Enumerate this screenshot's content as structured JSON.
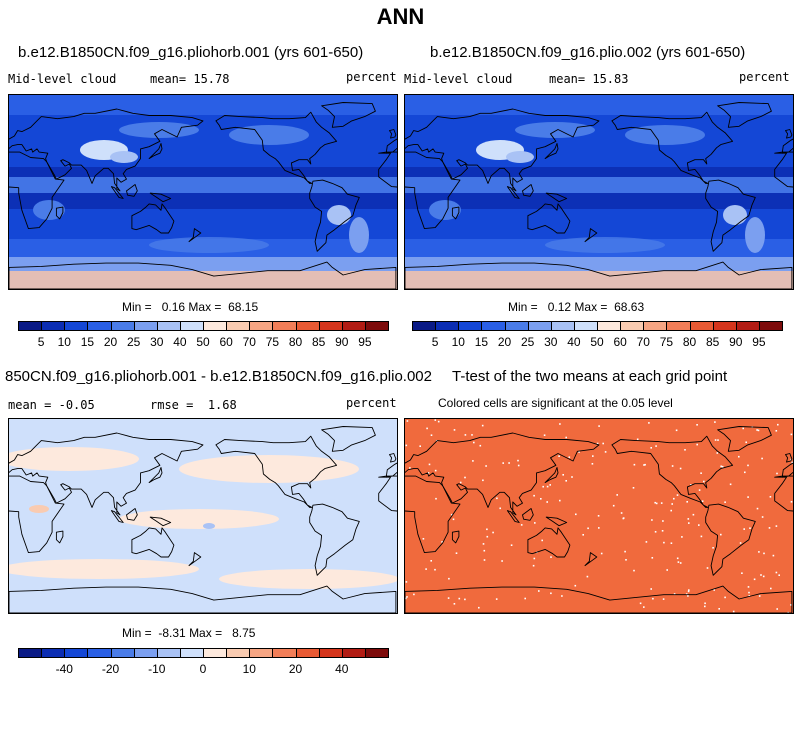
{
  "figure_title": "ANN",
  "colors": {
    "land_line": "#000000",
    "rainbow_scale": [
      "#0a1a86",
      "#0b2db3",
      "#1447d6",
      "#2a5fe5",
      "#4a7ce8",
      "#7b9ff0",
      "#a9c2f5",
      "#cfe0fb",
      "#fde9dd",
      "#f9cbb1",
      "#f6a583",
      "#f27e58",
      "#e85a34",
      "#d5351c",
      "#b21c14",
      "#7d0b0b"
    ]
  },
  "panels": [
    {
      "id": "panel-1",
      "case_title": "b.e12.B1850CN.f09_g16.pliohorb.001 (yrs 601-650)",
      "field_label": "Mid-level cloud",
      "mean_label": "mean=",
      "mean_value": "15.78",
      "units": "percent",
      "min_label": "Min =",
      "min_value": "0.16",
      "max_label": "Max =",
      "max_value": "68.15",
      "colorbar_ticks": [
        "5",
        "10",
        "15",
        "20",
        "25",
        "30",
        "40",
        "50",
        "60",
        "70",
        "75",
        "80",
        "85",
        "90",
        "95"
      ]
    },
    {
      "id": "panel-2",
      "case_title": "b.e12.B1850CN.f09_g16.plio.002 (yrs 601-650)",
      "field_label": "Mid-level cloud",
      "mean_label": "mean=",
      "mean_value": "15.83",
      "units": "percent",
      "min_label": "Min =",
      "min_value": "0.12",
      "max_label": "Max =",
      "max_value": "68.63",
      "colorbar_ticks": [
        "5",
        "10",
        "15",
        "20",
        "25",
        "30",
        "40",
        "50",
        "60",
        "70",
        "75",
        "80",
        "85",
        "90",
        "95"
      ]
    },
    {
      "id": "panel-3",
      "case_title": "850CN.f09_g16.pliohorb.001 - b.e12.B1850CN.f09_g16.plio.002",
      "mean_label": "mean =",
      "mean_value": "-0.05",
      "rmse_label": "rmse =",
      "rmse_value": "1.68",
      "units": "percent",
      "min_label": "Min =",
      "min_value": "-8.31",
      "max_label": "Max =",
      "max_value": "8.75",
      "colorbar_ticks": [
        "-40",
        "-20",
        "-10",
        "0",
        "10",
        "20",
        "40"
      ]
    },
    {
      "id": "panel-4",
      "case_title": "T-test of the two means at each grid point",
      "subtitle": "Colored cells are significant at the 0.05 level"
    }
  ]
}
